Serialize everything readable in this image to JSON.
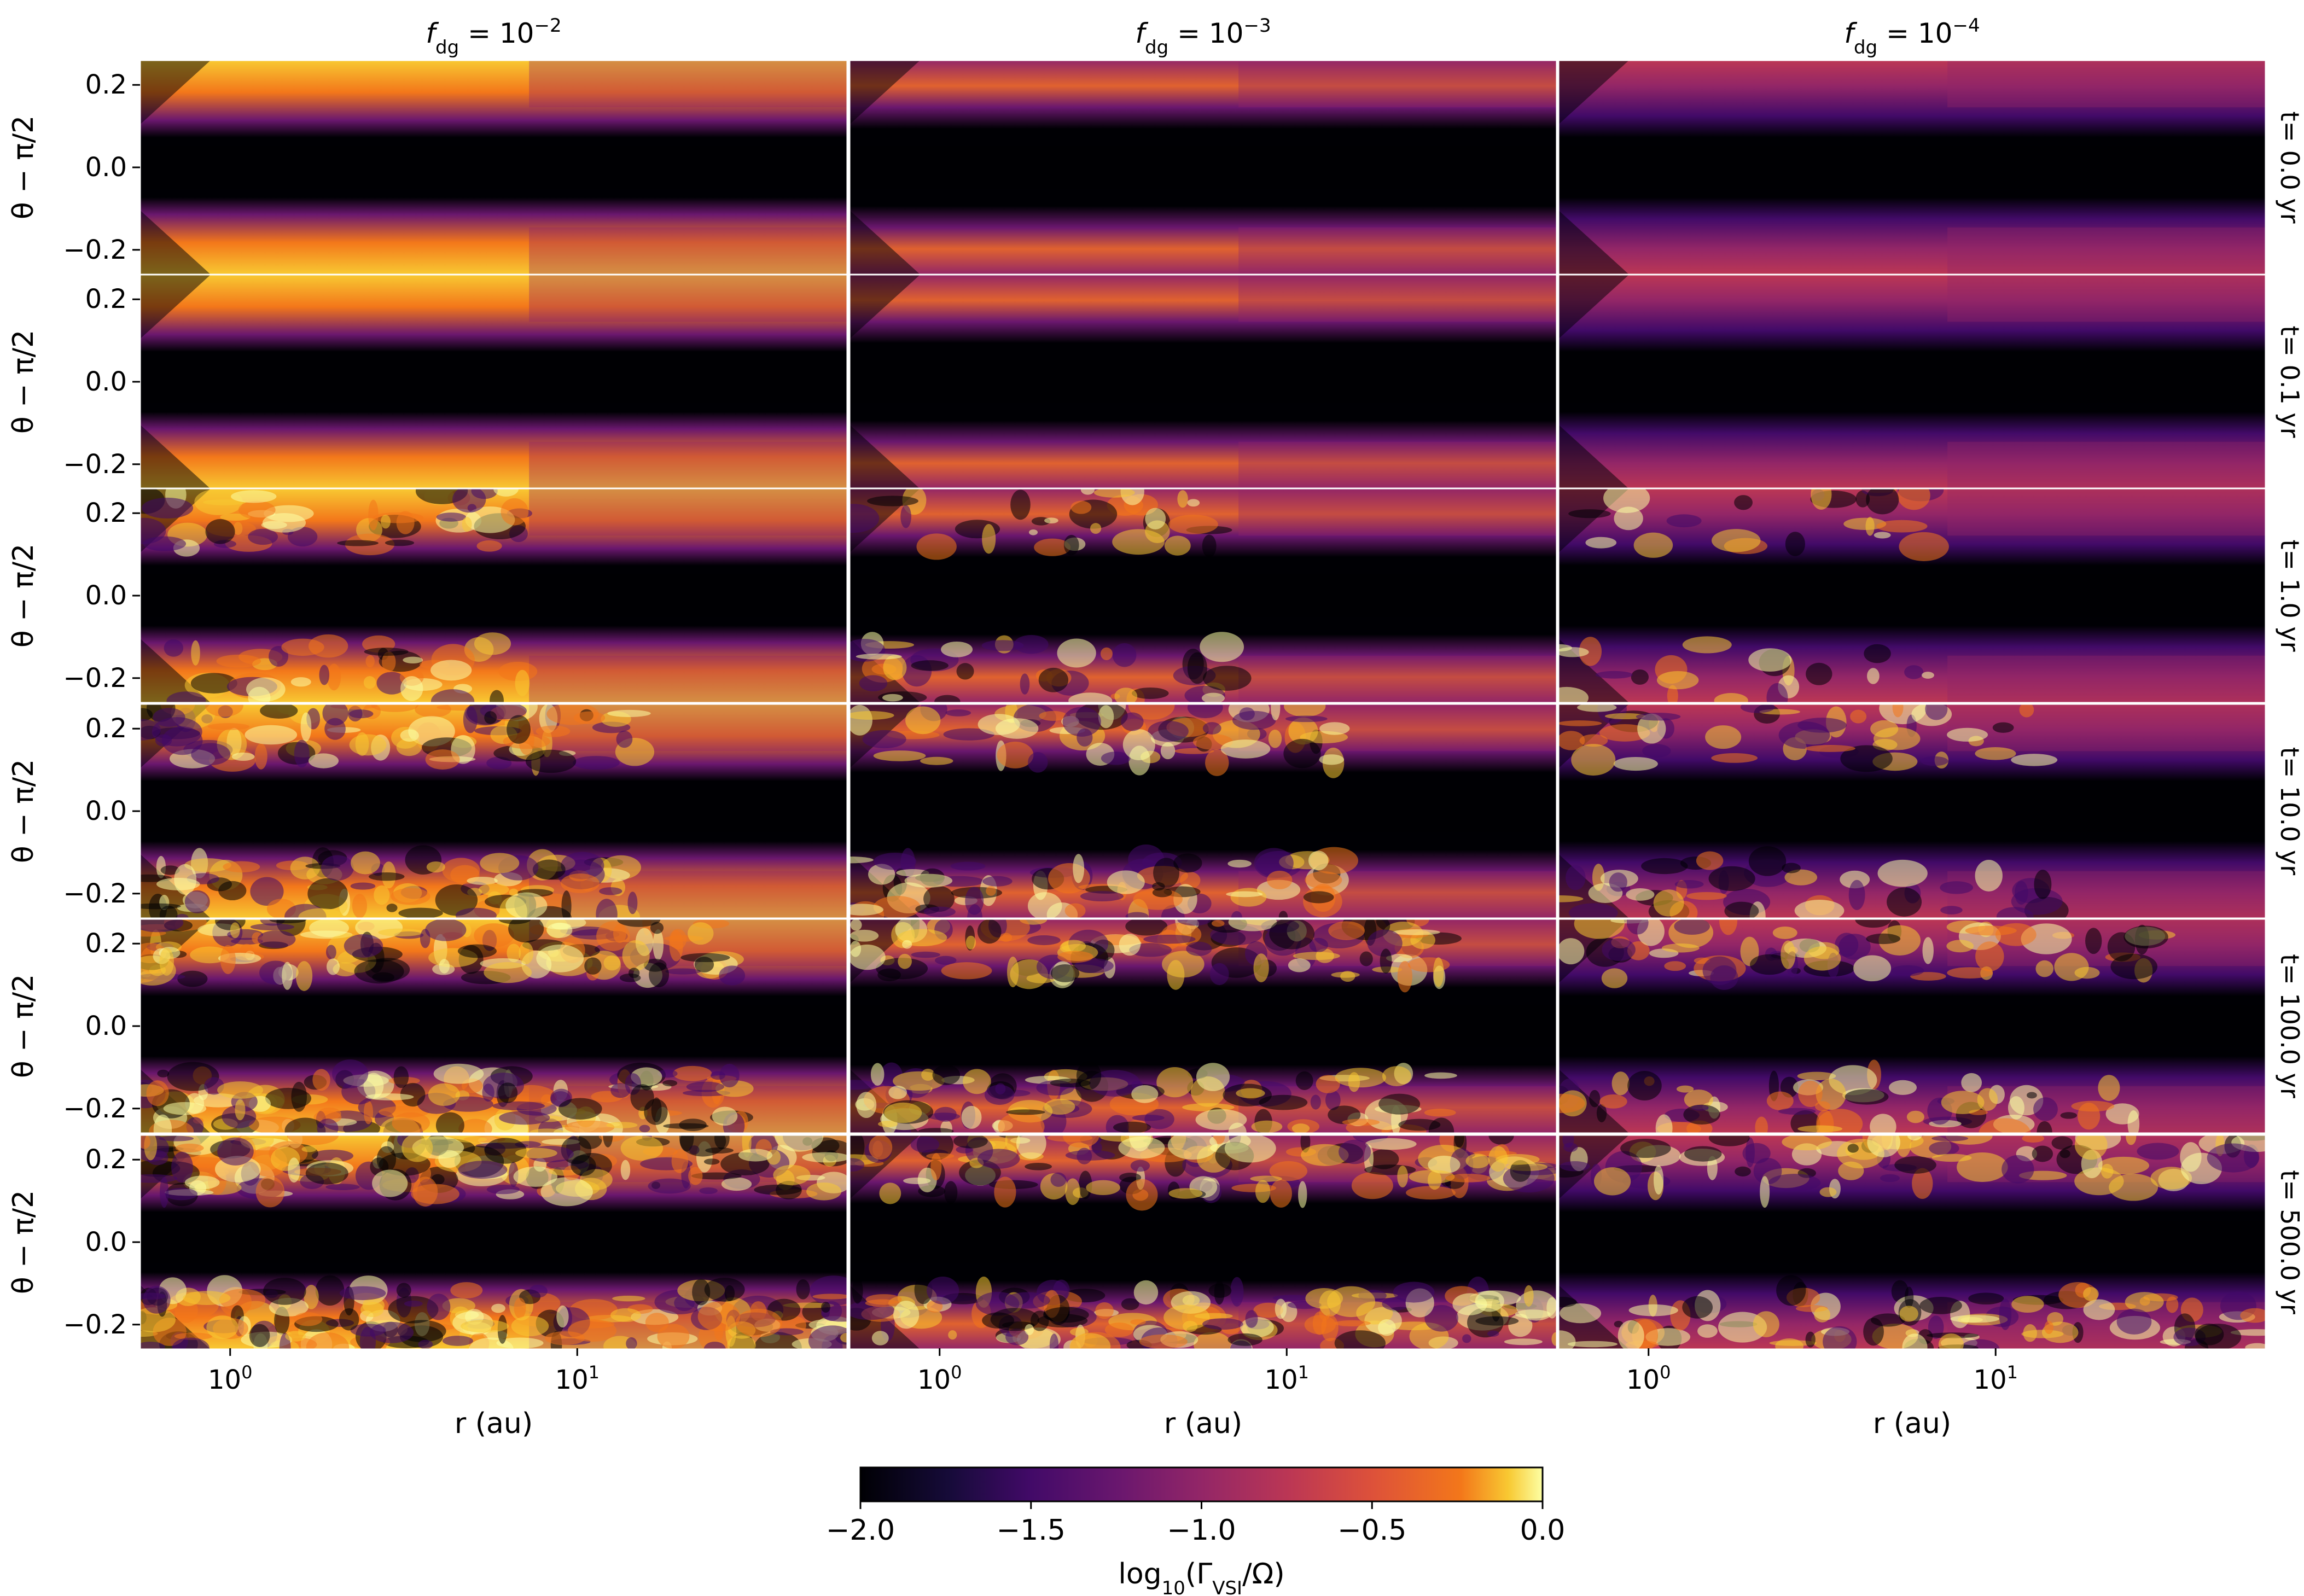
{
  "chart_data": {
    "type": "heatmap",
    "layout": {
      "rows": 6,
      "cols": 3
    },
    "column_titles": [
      {
        "base": "f",
        "sub": "dg",
        "eq": " = 10",
        "sup": "−2"
      },
      {
        "base": "f",
        "sub": "dg",
        "eq": " = 10",
        "sup": "−3"
      },
      {
        "base": "f",
        "sub": "dg",
        "eq": " = 10",
        "sup": "−4"
      }
    ],
    "row_labels": [
      "t= 0.0 yr",
      "t= 0.1 yr",
      "t= 1.0 yr",
      "t= 10.0 yr",
      "t= 100.0 yr",
      "t= 500.0 yr"
    ],
    "ylabel": "θ − π/2",
    "yticks": [
      {
        "value": 0.2,
        "label": "0.2"
      },
      {
        "value": 0.0,
        "label": "0.0"
      },
      {
        "value": -0.2,
        "label": "−0.2"
      }
    ],
    "ylim": [
      -0.26,
      0.26
    ],
    "xlabel": "r (au)",
    "xscale": "log",
    "xlim": [
      0.55,
      60
    ],
    "xticks": [
      {
        "value": 1,
        "base": "10",
        "exp": "0"
      },
      {
        "value": 10,
        "base": "10",
        "exp": "1"
      }
    ],
    "colorbar": {
      "label_prefix": "log",
      "label_sub": "10",
      "label_open": "(Γ",
      "label_sub2": "VSI",
      "label_close": "/Ω)",
      "vmin": -2.0,
      "vmax": 0.0,
      "cmap": "inferno",
      "ticks": [
        {
          "value": -2.0,
          "label": "−2.0"
        },
        {
          "value": -1.5,
          "label": "−1.5"
        },
        {
          "value": -1.0,
          "label": "−1.0"
        },
        {
          "value": -0.5,
          "label": "−0.5"
        },
        {
          "value": 0.0,
          "label": "0.0"
        }
      ]
    }
  }
}
